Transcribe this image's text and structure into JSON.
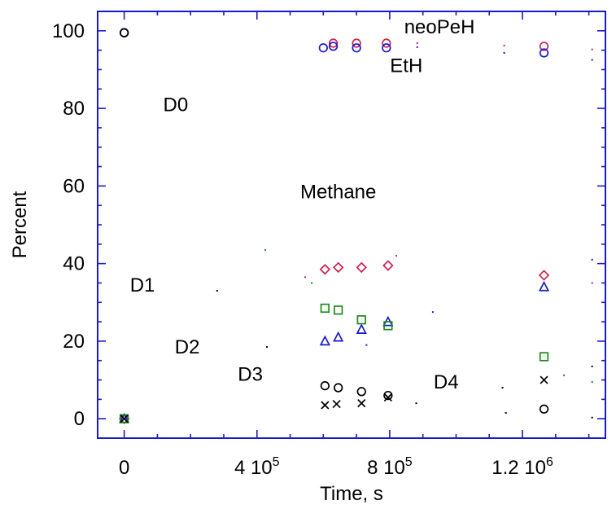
{
  "chart_data": {
    "type": "scatter",
    "title": "",
    "xlabel": "Time, s",
    "ylabel": "Percent",
    "xlim": [
      -80000,
      1450000
    ],
    "ylim": [
      -5,
      105
    ],
    "x_ticks": [
      {
        "value": 0,
        "label": "0",
        "sup": ""
      },
      {
        "value": 400000,
        "label": "4 10",
        "sup": "5"
      },
      {
        "value": 800000,
        "label": "8 10",
        "sup": "5"
      },
      {
        "value": 1200000,
        "label": "1.2 10",
        "sup": "6"
      }
    ],
    "y_ticks": [
      0,
      20,
      40,
      60,
      80,
      100
    ],
    "grid": false,
    "annotations": [
      {
        "text": "neoPeH",
        "x": 950000,
        "y": 101
      },
      {
        "text": "EtH",
        "x": 850000,
        "y": 91
      },
      {
        "text": "D0",
        "x": 155000,
        "y": 81
      },
      {
        "text": "Methane",
        "x": 645000,
        "y": 58.5
      },
      {
        "text": "D1",
        "x": 55000,
        "y": 34.5
      },
      {
        "text": "D2",
        "x": 190000,
        "y": 18.5
      },
      {
        "text": "D3",
        "x": 380000,
        "y": 11.5
      },
      {
        "text": "D4",
        "x": 970000,
        "y": 9.5
      }
    ],
    "series": [
      {
        "marker": "circle",
        "color": "#d02050",
        "x": [
          0,
          630000,
          700000,
          790000,
          1265000
        ],
        "y": [
          99.5,
          96.8,
          96.8,
          96.8,
          96.0
        ]
      },
      {
        "marker": "circle",
        "color": "#1a1acc",
        "x": [
          0,
          600000,
          630000,
          700000,
          790000,
          1265000
        ],
        "y": [
          99.5,
          95.6,
          96.0,
          95.6,
          95.6,
          94.3
        ]
      },
      {
        "marker": "diamond",
        "color": "#d02050",
        "x": [
          0,
          605000,
          645000,
          715000,
          795000,
          1265000
        ],
        "y": [
          0,
          38.5,
          39.0,
          39.0,
          39.5,
          37.0
        ]
      },
      {
        "marker": "triangle",
        "color": "#1a1acc",
        "x": [
          0,
          605000,
          645000,
          715000,
          795000,
          1265000
        ],
        "y": [
          0,
          20.0,
          21.0,
          23.0,
          25.0,
          34.0
        ]
      },
      {
        "marker": "square",
        "color": "#1a8c1a",
        "x": [
          0,
          605000,
          645000,
          715000,
          795000,
          1265000
        ],
        "y": [
          0,
          28.5,
          28.0,
          25.5,
          24.0,
          16.0
        ]
      },
      {
        "marker": "circle",
        "color": "#000000",
        "x": [
          0,
          605000,
          645000,
          715000,
          795000,
          1265000
        ],
        "y": [
          99.5,
          8.5,
          8.0,
          7.0,
          6.0,
          2.5
        ]
      },
      {
        "marker": "cross",
        "color": "#000000",
        "x": [
          0,
          605000,
          640000,
          715000,
          795000,
          1265000
        ],
        "y": [
          0,
          3.5,
          3.8,
          4.0,
          5.5,
          10.0
        ]
      }
    ],
    "dots": [
      {
        "color": "#d02050",
        "x": [
          883000,
          1145000,
          1410000,
          545000,
          820000,
          1410000
        ],
        "y": [
          96.8,
          96.2,
          95.2,
          36.5,
          42.0,
          35.0
        ]
      },
      {
        "color": "#1a1acc",
        "x": [
          883000,
          1145000,
          1410000,
          930000,
          1410000,
          730000
        ],
        "y": [
          95.8,
          94.3,
          92.5,
          27.5,
          41.0,
          19.0
        ]
      },
      {
        "color": "#1a8c1a",
        "x": [
          425000,
          565000,
          1325000,
          1410000
        ],
        "y": [
          43.5,
          35.0,
          11.2,
          9.5
        ]
      },
      {
        "color": "#000000",
        "x": [
          280000,
          430000,
          1140000,
          1410000,
          880000,
          1150000,
          1410000
        ],
        "y": [
          33.0,
          18.5,
          8.0,
          13.5,
          4.0,
          1.5,
          0.3
        ]
      }
    ]
  }
}
